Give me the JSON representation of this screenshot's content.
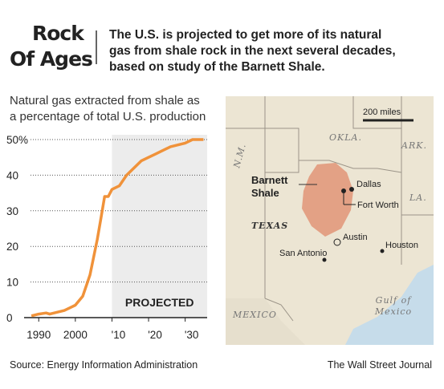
{
  "header": {
    "title_lines": [
      "Rock",
      "Of Ages"
    ],
    "description_lines": [
      "The U.S. is projected to get more of its natural",
      "gas from shale rock in the next several decades,",
      "based on study of the Barnett Shale."
    ]
  },
  "chart_data": {
    "type": "line",
    "subtitle_lines": [
      "Natural gas extracted from shale as",
      "a percentage of total U.S. production"
    ],
    "x": [
      1988,
      1990,
      1992,
      1993,
      1995,
      1997,
      1999,
      2000,
      2002,
      2004,
      2006,
      2007,
      2008,
      2009,
      2010,
      2012,
      2014,
      2016,
      2018,
      2020,
      2022,
      2024,
      2026,
      2028,
      2030,
      2032,
      2035
    ],
    "series": [
      {
        "color": "#f0923a",
        "values": [
          0.5,
          1,
          1.3,
          1,
          1.5,
          2,
          3,
          3.5,
          6,
          12,
          22,
          28,
          34,
          34,
          36,
          37,
          40,
          42,
          44,
          45,
          46,
          47,
          48,
          48.5,
          49,
          50,
          50
        ]
      }
    ],
    "xlim": [
      1986,
      2036
    ],
    "xticks": [
      1990,
      2000,
      {
        "value": 2010,
        "label": "'10"
      },
      {
        "value": 2020,
        "label": "'20"
      },
      {
        "value": 2030,
        "label": "'30"
      }
    ],
    "ylim": [
      0,
      50
    ],
    "yticks": [
      0,
      10,
      20,
      30,
      40,
      {
        "value": 50,
        "label": "50%"
      }
    ],
    "grid": true,
    "shaded_region": {
      "label": "PROJECTED",
      "start": 2010
    }
  },
  "map": {
    "scale": "200 miles",
    "states": [
      "OKLA.",
      "N.M.",
      "ARK.",
      "LA.",
      "TEXAS",
      "MEXICO"
    ],
    "shale_lines": [
      "Barnett",
      "Shale"
    ],
    "cities": [
      "Dallas",
      "Fort Worth",
      "Austin",
      "San Antonio",
      "Houston"
    ],
    "gulf_lines": [
      "Gulf of",
      "Mexico"
    ]
  },
  "footer": {
    "source": "Source: Energy Information Administration",
    "credit": "The Wall Street Journal"
  }
}
